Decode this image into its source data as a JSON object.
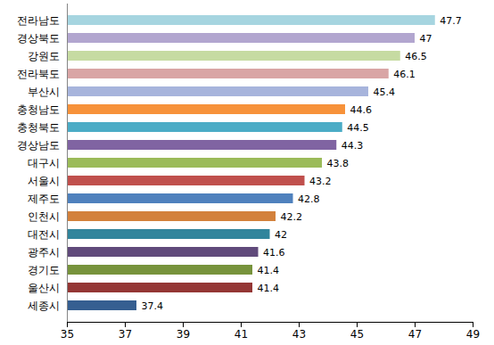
{
  "chart_data": {
    "type": "bar",
    "orientation": "horizontal",
    "categories": [
      "전라남도",
      "경상북도",
      "강원도",
      "전라북도",
      "부산시",
      "충청남도",
      "충청북도",
      "경상남도",
      "대구시",
      "서울시",
      "제주도",
      "인천시",
      "대전시",
      "광주시",
      "경기도",
      "울산시",
      "세종시"
    ],
    "values": [
      47.7,
      47,
      46.5,
      46.1,
      45.4,
      44.6,
      44.5,
      44.3,
      43.8,
      43.2,
      42.8,
      42.2,
      42,
      41.6,
      41.4,
      41.4,
      37.4
    ],
    "colors": [
      "#a6d5e0",
      "#b2a6cf",
      "#c6dba2",
      "#d9a5a5",
      "#a7b4dc",
      "#f7923a",
      "#4bacc6",
      "#8064a2",
      "#9bbb59",
      "#c0504d",
      "#4f81bd",
      "#d3813c",
      "#31859c",
      "#604a7b",
      "#77933c",
      "#943634",
      "#365f91"
    ],
    "xlim": [
      35,
      49
    ],
    "xticks": [
      35,
      37,
      39,
      41,
      43,
      45,
      47,
      49
    ],
    "grid": false,
    "data_labels": true
  }
}
